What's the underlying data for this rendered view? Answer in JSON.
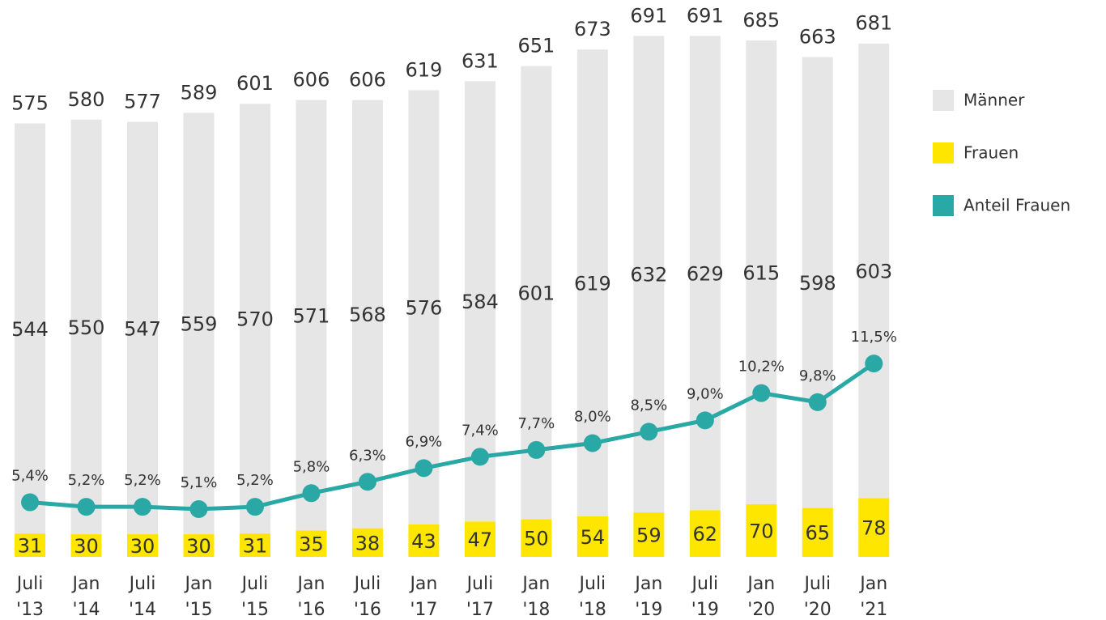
{
  "chart_data": {
    "type": "bar",
    "stacked": true,
    "legend": "right",
    "categories": [
      [
        "Juli",
        "'13"
      ],
      [
        "Jan",
        "'14"
      ],
      [
        "Juli",
        "'14"
      ],
      [
        "Jan",
        "'15"
      ],
      [
        "Juli",
        "'15"
      ],
      [
        "Jan",
        "'16"
      ],
      [
        "Juli",
        "'16"
      ],
      [
        "Jan",
        "'17"
      ],
      [
        "Juli",
        "'17"
      ],
      [
        "Jan",
        "'18"
      ],
      [
        "Juli",
        "'18"
      ],
      [
        "Jan",
        "'19"
      ],
      [
        "Juli",
        "'19"
      ],
      [
        "Jan",
        "'20"
      ],
      [
        "Juli",
        "'20"
      ],
      [
        "Jan",
        "'21"
      ]
    ],
    "series": [
      {
        "name": "Männer",
        "color": "#e6e6e6",
        "values": [
          544,
          550,
          547,
          559,
          570,
          571,
          568,
          576,
          584,
          601,
          619,
          632,
          629,
          615,
          598,
          603
        ]
      },
      {
        "name": "Frauen",
        "color": "#ffe600",
        "values": [
          31,
          30,
          30,
          30,
          31,
          35,
          38,
          43,
          47,
          50,
          54,
          59,
          62,
          70,
          65,
          78
        ]
      },
      {
        "name": "Anteil Frauen",
        "color": "#2aa8a6",
        "type": "line",
        "axis": "y2",
        "values": [
          5.4,
          5.2,
          5.2,
          5.1,
          5.2,
          5.8,
          6.3,
          6.9,
          7.4,
          7.7,
          8.0,
          8.5,
          9.0,
          10.2,
          9.8,
          11.5
        ],
        "value_labels": [
          "5,4%",
          "5,2%",
          "5,2%",
          "5,1%",
          "5,2%",
          "5,8%",
          "6,3%",
          "6,9%",
          "7,4%",
          "7,7%",
          "8,0%",
          "8,5%",
          "9,0%",
          "10,2%",
          "9,8%",
          "11,5%"
        ]
      }
    ],
    "totals": [
      575,
      580,
      577,
      589,
      601,
      606,
      606,
      619,
      631,
      651,
      673,
      691,
      691,
      685,
      663,
      681
    ],
    "ylim": [
      0,
      700
    ],
    "y2lim": [
      3,
      26.2
    ]
  }
}
